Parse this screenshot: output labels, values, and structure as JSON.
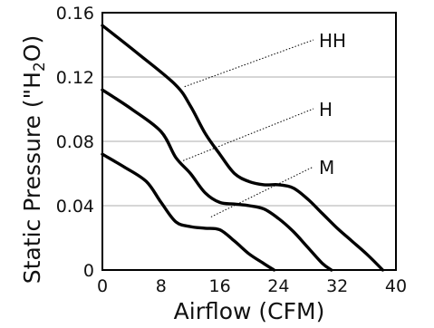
{
  "chart_data": {
    "type": "line",
    "title": "",
    "xlabel": "Airflow (CFM)",
    "ylabel_parts": {
      "before": "Static Pressure (\"H",
      "subscript": "2",
      "after": "O)"
    },
    "xlim": [
      0,
      40
    ],
    "ylim": [
      0,
      0.16
    ],
    "x_ticks": [
      0,
      8,
      16,
      24,
      32,
      40
    ],
    "x_tick_labels": [
      "0",
      "8",
      "16",
      "24",
      "32",
      "40"
    ],
    "y_ticks": [
      0,
      0.04,
      0.08,
      0.12,
      0.16
    ],
    "y_tick_labels": [
      "0",
      "0.04",
      "0.08",
      "0.12",
      "0.16"
    ],
    "grid": "horizontal",
    "legend": "none (series labels with leader lines)",
    "series": [
      {
        "name": "HH",
        "x": [
          0,
          5,
          10,
          12,
          14,
          16,
          18,
          20,
          22,
          24,
          26,
          28,
          30,
          32,
          34,
          36,
          38.2
        ],
        "y": [
          0.152,
          0.134,
          0.115,
          0.102,
          0.085,
          0.072,
          0.06,
          0.055,
          0.053,
          0.053,
          0.051,
          0.044,
          0.035,
          0.026,
          0.018,
          0.01,
          0.0
        ],
        "label_anchor": {
          "x": 11.2,
          "y": 0.114
        }
      },
      {
        "name": "H",
        "x": [
          0,
          4,
          8,
          10,
          12,
          14,
          16,
          18,
          20,
          22,
          24,
          26,
          28,
          30,
          31.2
        ],
        "y": [
          0.112,
          0.1,
          0.086,
          0.07,
          0.06,
          0.048,
          0.042,
          0.041,
          0.04,
          0.038,
          0.032,
          0.024,
          0.014,
          0.004,
          0.0
        ],
        "label_anchor": {
          "x": 11.0,
          "y": 0.068
        }
      },
      {
        "name": "M",
        "x": [
          0,
          3,
          6,
          8,
          10,
          12,
          14,
          16,
          18,
          20,
          22,
          23.4
        ],
        "y": [
          0.072,
          0.064,
          0.055,
          0.042,
          0.03,
          0.027,
          0.026,
          0.025,
          0.018,
          0.01,
          0.004,
          0.0
        ],
        "label_anchor": {
          "x": 14.8,
          "y": 0.033
        }
      }
    ]
  }
}
